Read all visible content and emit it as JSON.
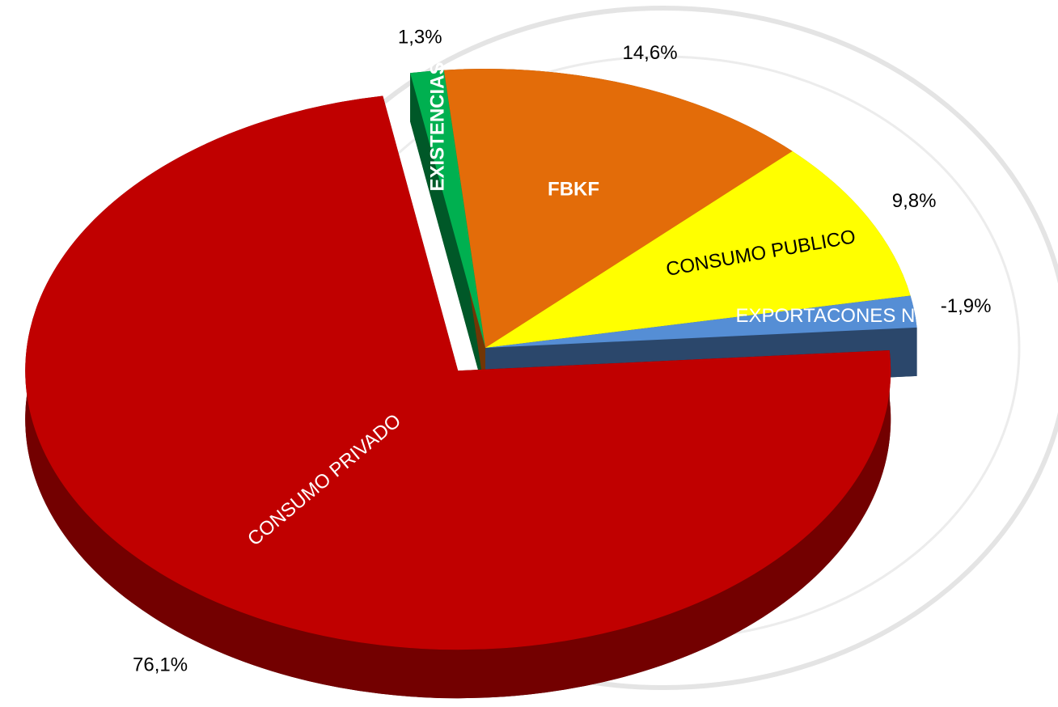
{
  "chart_data": {
    "type": "pie",
    "categories": [
      "EXISTENCIAS",
      "FBKF",
      "CONSUMO PUBLICO",
      "EXPORTACONES NETAS",
      "CONSUMO PRIVADO"
    ],
    "values": [
      1.3,
      14.6,
      9.8,
      -1.9,
      76.1
    ],
    "value_labels": [
      "1,3%",
      "14,6%",
      "9,8%",
      "-1,9%",
      "76,1%"
    ],
    "colors": [
      "#00b050",
      "#e36c09",
      "#ffff00",
      "#558ed5",
      "#c00000"
    ]
  }
}
